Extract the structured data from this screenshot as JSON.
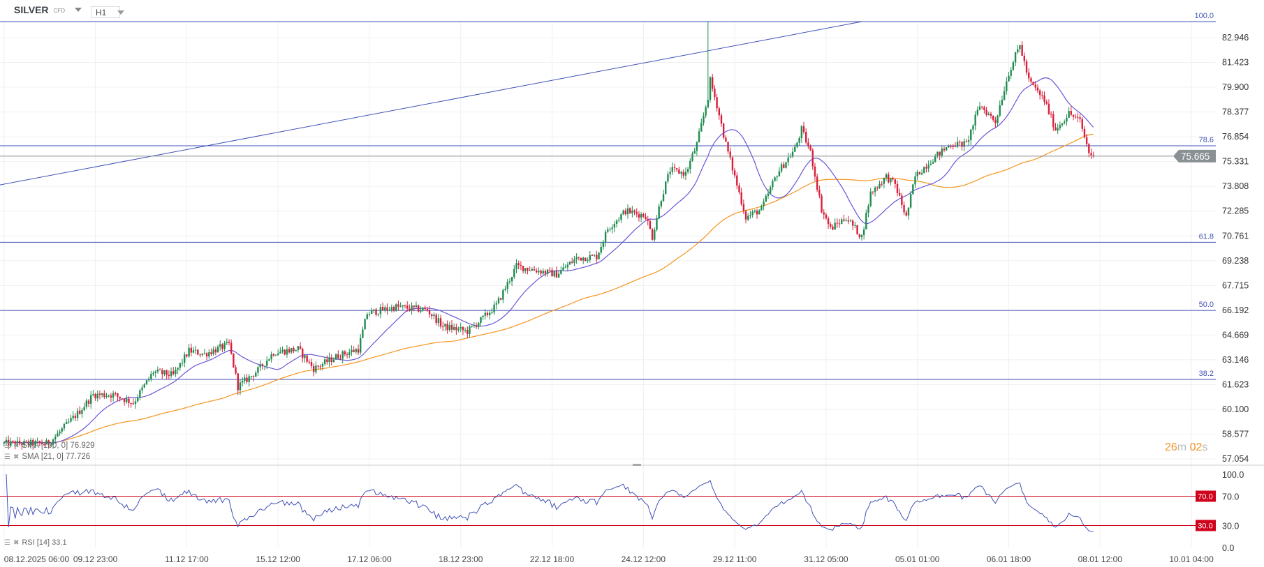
{
  "header": {
    "symbol": "SILVER",
    "instrument_type": "CFD",
    "timeframe": "H1"
  },
  "countdown": {
    "minutes": "26",
    "m": "m",
    "seconds": "02",
    "s": "s"
  },
  "indicators": {
    "sma100": {
      "label": "SMA [100, 0] 76.929",
      "color": "#f7941d"
    },
    "sma21": {
      "label": "SMA [21, 0] 77.726",
      "color": "#6a55d8"
    },
    "rsi": {
      "label": "RSI [14] 33.1"
    }
  },
  "colors": {
    "up": "#1e8c4e",
    "down": "#d81e3a",
    "fib": "#3f51b5",
    "rsi_line": "#3f51b5",
    "rsi_level": "#d0021b",
    "price_tag": "#8a9194"
  },
  "chart_data": {
    "type": "candlestick",
    "title": "SILVER CFD H1",
    "current_price": 75.665,
    "current_price_label": "75.665",
    "y_ticks": [
      "82.946",
      "81.423",
      "79.900",
      "78.377",
      "76.854",
      "75.331",
      "73.808",
      "72.285",
      "70.761",
      "69.238",
      "67.715",
      "66.192",
      "64.669",
      "63.146",
      "61.623",
      "60.100",
      "58.577",
      "57.054"
    ],
    "ylim": [
      57.054,
      82.946
    ],
    "x_ticks": [
      {
        "bar": 0,
        "label": "08.12.2025  06:00"
      },
      {
        "bar": 41,
        "label": "09.12  23:00"
      },
      {
        "bar": 82,
        "label": "11.12  17:00"
      },
      {
        "bar": 123,
        "label": "15.12  12:00"
      },
      {
        "bar": 164,
        "label": "17.12  06:00"
      },
      {
        "bar": 205,
        "label": "18.12  23:00"
      },
      {
        "bar": 246,
        "label": "22.12  18:00"
      },
      {
        "bar": 287,
        "label": "24.12  12:00"
      },
      {
        "bar": 328,
        "label": "29.12  11:00"
      },
      {
        "bar": 369,
        "label": "31.12  05:00"
      },
      {
        "bar": 410,
        "label": "05.01  01:00"
      },
      {
        "bar": 451,
        "label": "06.01  18:00"
      },
      {
        "bar": 492,
        "label": "08.01  12:00"
      },
      {
        "bar": 533,
        "label": "10.01  04:00"
      }
    ],
    "close_anchors": [
      [
        0,
        58.0
      ],
      [
        20,
        58.0
      ],
      [
        34,
        60.0
      ],
      [
        40,
        61.0
      ],
      [
        49,
        61.0
      ],
      [
        58,
        60.5
      ],
      [
        67,
        62.4
      ],
      [
        76,
        62.2
      ],
      [
        83,
        63.7
      ],
      [
        90,
        63.5
      ],
      [
        101,
        64.1
      ],
      [
        105,
        61.5
      ],
      [
        114,
        62.5
      ],
      [
        121,
        63.6
      ],
      [
        132,
        63.8
      ],
      [
        139,
        62.6
      ],
      [
        150,
        63.4
      ],
      [
        159,
        63.8
      ],
      [
        163,
        66.0
      ],
      [
        176,
        66.4
      ],
      [
        190,
        66.2
      ],
      [
        197,
        65.2
      ],
      [
        208,
        64.9
      ],
      [
        215,
        65.7
      ],
      [
        221,
        66.5
      ],
      [
        230,
        68.9
      ],
      [
        248,
        68.4
      ],
      [
        257,
        69.4
      ],
      [
        266,
        69.5
      ],
      [
        271,
        71.2
      ],
      [
        279,
        72.3
      ],
      [
        288,
        72.0
      ],
      [
        291,
        70.7
      ],
      [
        295,
        73.1
      ],
      [
        299,
        74.8
      ],
      [
        306,
        74.6
      ],
      [
        311,
        76.4
      ],
      [
        316,
        79.3
      ],
      [
        317,
        80.3
      ],
      [
        320,
        78.8
      ],
      [
        324,
        76.4
      ],
      [
        329,
        73.9
      ],
      [
        333,
        71.9
      ],
      [
        340,
        72.4
      ],
      [
        347,
        74.6
      ],
      [
        355,
        76.1
      ],
      [
        358,
        77.3
      ],
      [
        362,
        75.9
      ],
      [
        367,
        72.4
      ],
      [
        371,
        71.2
      ],
      [
        378,
        71.9
      ],
      [
        385,
        70.7
      ],
      [
        389,
        73.4
      ],
      [
        396,
        74.4
      ],
      [
        400,
        73.9
      ],
      [
        405,
        71.9
      ],
      [
        409,
        74.4
      ],
      [
        416,
        75.4
      ],
      [
        425,
        76.4
      ],
      [
        432,
        76.4
      ],
      [
        438,
        78.8
      ],
      [
        445,
        77.8
      ],
      [
        451,
        80.8
      ],
      [
        456,
        82.5
      ],
      [
        460,
        80.3
      ],
      [
        467,
        79.1
      ],
      [
        472,
        77.3
      ],
      [
        478,
        78.3
      ],
      [
        483,
        77.8
      ],
      [
        487,
        75.9
      ],
      [
        489,
        75.665
      ]
    ],
    "spike_high": {
      "bar": 316,
      "price": 83.93
    },
    "fibonacci": {
      "levels": [
        {
          "level": "100.0",
          "price": 83.93
        },
        {
          "level": "78.6",
          "price": 76.3
        },
        {
          "level": "61.8",
          "price": 70.37
        },
        {
          "level": "50.0",
          "price": 66.18
        },
        {
          "level": "38.2",
          "price": 61.94
        }
      ]
    },
    "trendline": {
      "start": {
        "bar": -2,
        "price": 73.89
      },
      "end": {
        "bar": 385,
        "price": 83.93
      }
    },
    "rsi": {
      "period": 14,
      "ylim": [
        0,
        100
      ],
      "y_ticks": [
        "100.0",
        "70.0",
        "30.0",
        "0.0"
      ],
      "levels": [
        {
          "value": 70,
          "label": "70.0"
        },
        {
          "value": 30,
          "label": "30.0"
        }
      ]
    }
  }
}
